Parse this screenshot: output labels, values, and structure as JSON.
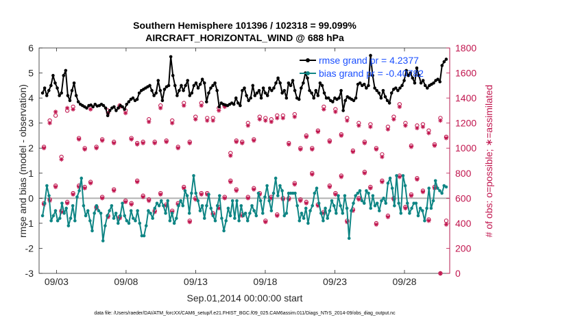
{
  "title_line1": "Southern Hemisphere 101396 / 102318 = 99.099%",
  "title_line2": "AIRCRAFT_HORIZONTAL_WIND @ 688 hPa",
  "xlabel": "Sep.01,2014 00:00:00 start",
  "ylabel_left": "rmse and bias (model - observation)",
  "ylabel_right": "# of obs: o=possible; ∗=assimilated",
  "footer": "data file: /Users/raeder/DAI/ATM_forcXX/CAM6_setup/f.e21.FHIST_BGC.f09_025.CAM6assim.011/Diags_NTrS_2014-09/obs_diag_output.nc",
  "colors": {
    "rmse": "#000000",
    "bias": "#0e8584",
    "obs": "#c0144d",
    "zero_line": "#b0b0b0",
    "legend_text": "#1a4fff"
  },
  "chart_data": {
    "type": "line",
    "x_unit": "day offset from Sep.01,2014 00:00",
    "xlim": [
      0.75,
      30.25
    ],
    "ylim": [
      -3,
      6
    ],
    "y2lim": [
      0,
      1800
    ],
    "x_ticks": [
      {
        "x": 2,
        "label": "09/03"
      },
      {
        "x": 7,
        "label": "09/08"
      },
      {
        "x": 12,
        "label": "09/13"
      },
      {
        "x": 17,
        "label": "09/18"
      },
      {
        "x": 22,
        "label": "09/23"
      },
      {
        "x": 27,
        "label": "09/28"
      }
    ],
    "y_ticks": [
      -3,
      -2,
      -1,
      0,
      1,
      2,
      3,
      4,
      5,
      6
    ],
    "y2_ticks": [
      0,
      200,
      400,
      600,
      800,
      1000,
      1200,
      1400,
      1600,
      1800
    ],
    "series": [
      {
        "name": "rmse",
        "legend": "rmse grand pr = 4.2377",
        "values": [
          4.2,
          4.4,
          4.1,
          4.3,
          4.5,
          4.9,
          4.6,
          4.4,
          4.1,
          4.2,
          4.9,
          5.1,
          4.1,
          3.9,
          4.3,
          4.6,
          4.1,
          3.85,
          3.75,
          3.7,
          3.65,
          3.6,
          3.7,
          3.72,
          3.65,
          3.75,
          3.68,
          3.7,
          3.75,
          3.7,
          3.6,
          3.3,
          3.5,
          3.6,
          3.65,
          3.5,
          3.6,
          3.7,
          3.65,
          3.55,
          3.75,
          3.85,
          3.95,
          4.0,
          3.9,
          3.95,
          4.2,
          4.3,
          4.35,
          4.4,
          4.45,
          4.5,
          4.3,
          4.1,
          4.2,
          4.7,
          4.3,
          3.9,
          4.35,
          4.45,
          4.5,
          5.65,
          4.9,
          4.5,
          4.1,
          4.3,
          4.5,
          4.3,
          4.5,
          4.7,
          4.1,
          4.2,
          4.5,
          4.6,
          4.4,
          4.55,
          4.75,
          4.6,
          3.85,
          4.2,
          4.4,
          4.5,
          4.6,
          4.3,
          3.65,
          3.8,
          3.75,
          3.72,
          3.7,
          3.75,
          3.8,
          3.75,
          4.0,
          3.8,
          3.7,
          4.3,
          4.4,
          4.1,
          3.9,
          4.0,
          4.5,
          4.1,
          4.2,
          4.3,
          4.0,
          4.4,
          4.2,
          4.1,
          4.4,
          4.3,
          4.4,
          4.6,
          4.8,
          4.6,
          4.2,
          4.3,
          4.0,
          4.6,
          4.5,
          4.7,
          4.3,
          4.0,
          3.95,
          4.4,
          4.6,
          5.0,
          4.8,
          4.3,
          4.2,
          4.0,
          4.3,
          4.1,
          4.6,
          4.5,
          4.2,
          4.0,
          4.0,
          3.9,
          3.85,
          4.0,
          3.95,
          4.0,
          4.3,
          3.5,
          3.9,
          4.05,
          4.0,
          3.95,
          3.9,
          4.0,
          4.55,
          4.6,
          4.5,
          4.55,
          4.4,
          4.5,
          5.7,
          4.9,
          4.4,
          4.3,
          4.2,
          4.0,
          4.3,
          4.05,
          3.9,
          3.8,
          4.2,
          4.35,
          4.4,
          4.3,
          4.4,
          4.5,
          4.7,
          5.1,
          4.9,
          5.0,
          4.8,
          4.6,
          5.2,
          4.9,
          4.6,
          4.7,
          4.5,
          4.4,
          4.5,
          4.55,
          4.6,
          4.7,
          4.75,
          4.65,
          5.3,
          5.45,
          5.55
        ]
      },
      {
        "name": "bias",
        "legend": "bias grand pr = -0.40782",
        "values": [
          -0.7,
          -0.2,
          0.5,
          0.1,
          -0.9,
          -0.7,
          -0.5,
          -0.9,
          -0.8,
          -0.2,
          -0.6,
          -0.4,
          -1.1,
          -0.8,
          -0.3,
          -0.9,
          0.05,
          0.3,
          0.8,
          -0.3,
          -0.7,
          -0.5,
          -0.9,
          -1.3,
          -0.6,
          -0.3,
          -0.5,
          -0.6,
          -1.7,
          -1.1,
          -0.7,
          -0.5,
          -0.3,
          -0.8,
          -0.6,
          -1.0,
          -0.7,
          -0.2,
          -0.7,
          -0.9,
          -1.0,
          -0.5,
          -0.8,
          -0.9,
          -0.5,
          -1.0,
          -1.5,
          -1.5,
          -1.1,
          -0.5,
          -0.6,
          -0.8,
          -0.4,
          -0.2,
          -0.3,
          -0.1,
          -0.3,
          -0.6,
          -0.1,
          -0.9,
          -0.6,
          -1.0,
          -0.8,
          -0.3,
          -0.1,
          -0.3,
          0.3,
          0.1,
          -0.6,
          0.2,
          0.9,
          0.2,
          -0.1,
          -0.5,
          -0.3,
          -0.8,
          -0.3,
          0.15,
          -0.4,
          -0.7,
          -0.9,
          -0.3,
          0.1,
          -0.8,
          -1.3,
          -0.9,
          -0.4,
          -0.7,
          -0.1,
          -0.8,
          -0.1,
          -0.9,
          -0.3,
          -0.7,
          -0.6,
          -0.9,
          -0.6,
          -0.3,
          -0.5,
          -0.7,
          0.2,
          -0.1,
          -0.6,
          0.05,
          0.5,
          -0.1,
          -0.5,
          0.2,
          0.8,
          0.1,
          0.5,
          0.3,
          -0.7,
          -0.6,
          0.2,
          0.2,
          0.2,
          0.2,
          -0.3,
          -0.9,
          -0.6,
          -0.8,
          -0.4,
          -1.0,
          -0.5,
          -0.3,
          0.2,
          0.4,
          -0.2,
          -0.6,
          -0.9,
          -0.4,
          -0.8,
          -0.5,
          -0.1,
          -0.3,
          -0.6,
          0.1,
          -0.3,
          -0.6,
          0.1,
          -0.4,
          -1.6,
          -0.5,
          -0.2,
          0.1,
          0.2,
          0.3,
          -0.1,
          -0.2,
          0.3,
          0.2,
          -0.4,
          0.1,
          -0.3,
          -0.2,
          -0.5,
          -0.1,
          0.0,
          -0.2,
          0.6,
          0.8,
          0.4,
          -0.3,
          0.9,
          -0.2,
          -0.6,
          0.9,
          0.5,
          -0.2,
          -0.6,
          -0.4,
          -0.2,
          -0.2,
          -0.7,
          -0.4,
          -0.5,
          -0.9,
          -0.4,
          0.4,
          -0.4,
          -0.1,
          0.7,
          0.4,
          0.3,
          0.2,
          0.5,
          0.45
        ]
      },
      {
        "name": "obs_possible",
        "marker": "o",
        "values": [
          1010,
          1220,
          1260,
          930,
          1300,
          1330,
          1080,
          1000,
          1330,
          1010,
          1070,
          1300,
          1050,
          1340,
          1300,
          1080,
          1040,
          1050,
          1230,
          1050,
          1340,
          1060,
          1220,
          1010,
          1360,
          1050,
          1250,
          1360,
          1240,
          1240,
          1320,
          1340,
          960,
          1060,
          1050,
          1200,
          1070,
          1250,
          1240,
          1230,
          1260,
          1260,
          1040,
          1270,
          1000,
          1100,
          1000,
          1140,
          1330,
          1060,
          1310,
          1110,
          1240,
          980,
          1200,
          1050,
          1190,
          1000,
          950,
          1170,
          1250,
          1350,
          1200,
          1020,
          1180,
          1190,
          1140,
          1030,
          1240,
          1090
        ]
      },
      {
        "name": "obs_assimilated",
        "marker": "*",
        "values": [
          1000,
          1200,
          1290,
          910,
          1320,
          1310,
          1070,
          990,
          1310,
          1000,
          1060,
          1280,
          1040,
          1330,
          1280,
          1070,
          1030,
          1040,
          1210,
          1040,
          1320,
          1050,
          1200,
          1000,
          1340,
          1040,
          1230,
          1340,
          1220,
          1220,
          1300,
          1330,
          940,
          1050,
          1040,
          1180,
          1060,
          1230,
          1220,
          1210,
          1240,
          1240,
          1030,
          1250,
          990,
          1090,
          990,
          1130,
          1310,
          1050,
          1290,
          1100,
          1220,
          970,
          1180,
          1040,
          1170,
          990,
          930,
          1150,
          1230,
          1330,
          1180,
          1010,
          1160,
          1170,
          1120,
          1020,
          1220,
          1080
        ]
      },
      {
        "name": "obs_possible_low",
        "marker": "o",
        "values": [
          560,
          590,
          700,
          500,
          570,
          640,
          700,
          690,
          730,
          530,
          610,
          460,
          670,
          450,
          580,
          560,
          740,
          620,
          590,
          500,
          640,
          550,
          500,
          560,
          690,
          420,
          600,
          640,
          640,
          480,
          530,
          610,
          740,
          670,
          470,
          610,
          680,
          640,
          420,
          610,
          470,
          600,
          600,
          720,
          590,
          570,
          800,
          550,
          490,
          700,
          640,
          780,
          420,
          510,
          600,
          810,
          690,
          400,
          740,
          460,
          600,
          780,
          530,
          630,
          760,
          660,
          430,
          690,
          0,
          420
        ]
      },
      {
        "name": "obs_assimilated_low",
        "marker": "*",
        "values": [
          550,
          580,
          690,
          490,
          560,
          630,
          690,
          680,
          720,
          520,
          600,
          450,
          660,
          440,
          570,
          550,
          730,
          610,
          580,
          490,
          630,
          540,
          490,
          550,
          680,
          410,
          590,
          630,
          630,
          470,
          520,
          600,
          730,
          660,
          460,
          600,
          670,
          630,
          410,
          600,
          460,
          590,
          590,
          710,
          580,
          560,
          790,
          540,
          480,
          690,
          630,
          770,
          410,
          500,
          590,
          800,
          680,
          390,
          730,
          450,
          590,
          770,
          520,
          620,
          750,
          650,
          420,
          680,
          0,
          390
        ]
      }
    ]
  }
}
